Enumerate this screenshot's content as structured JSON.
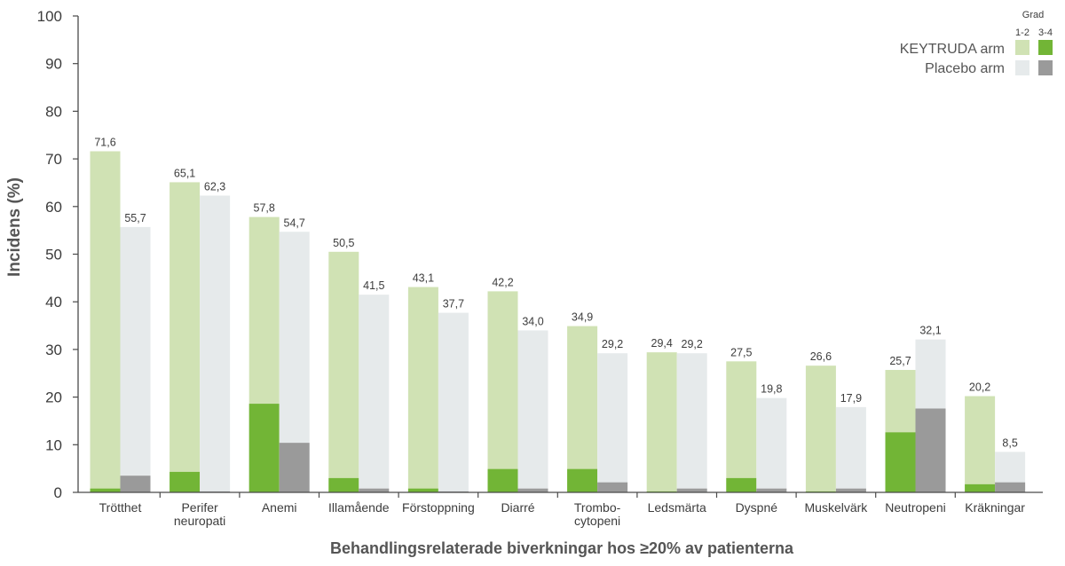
{
  "chart_data": {
    "type": "bar",
    "ylabel": "Incidens (%)",
    "xlabel": "Behandlingsrelaterade biverkningar hos ≥20% av patienterna",
    "ylim": [
      0,
      100
    ],
    "yticks": [
      0,
      10,
      20,
      30,
      40,
      50,
      60,
      70,
      80,
      90,
      100
    ],
    "grid": false,
    "legend_position": "top-right",
    "legend": {
      "title": "Grad",
      "grade_labels": [
        "1-2",
        "3-4"
      ]
    },
    "categories": [
      [
        "Trötthet"
      ],
      [
        "Perifer",
        "neuropati"
      ],
      [
        "Anemi"
      ],
      [
        "Illamående"
      ],
      [
        "Förstoppning"
      ],
      [
        "Diarré"
      ],
      [
        "Trombo-",
        "cytopeni"
      ],
      [
        "Ledsmärta"
      ],
      [
        "Dyspné"
      ],
      [
        "Muskelvärk"
      ],
      [
        "Neutropeni"
      ],
      [
        "Kräkningar"
      ]
    ],
    "series": [
      {
        "name": "KEYTRUDA arm",
        "color_grade12": "#d0e2b4",
        "color_grade34": "#72b536",
        "total": [
          71.6,
          65.1,
          57.8,
          50.5,
          43.1,
          42.2,
          34.9,
          29.4,
          27.5,
          26.6,
          25.7,
          20.2
        ],
        "total_labels": [
          "71,6",
          "65,1",
          "57,8",
          "50,5",
          "43,1",
          "42,2",
          "34,9",
          "29,4",
          "27,5",
          "26,6",
          "25,7",
          "20,2"
        ],
        "grade34": [
          0.8,
          4.3,
          18.6,
          3.0,
          0.8,
          4.9,
          4.9,
          0.2,
          3.0,
          0.2,
          12.6,
          1.7
        ]
      },
      {
        "name": "Placebo arm",
        "color_grade12": "#e6eaeb",
        "color_grade34": "#9a9a9a",
        "total": [
          55.7,
          62.3,
          54.7,
          41.5,
          37.7,
          34.0,
          29.2,
          29.2,
          19.8,
          17.9,
          32.1,
          8.5
        ],
        "total_labels": [
          "55,7",
          "62,3",
          "54,7",
          "41,5",
          "37,7",
          "34,0",
          "29,2",
          "29,2",
          "19,8",
          "17,9",
          "32,1",
          "8,5"
        ],
        "grade34": [
          3.5,
          0.2,
          10.4,
          0.8,
          0.2,
          0.8,
          2.1,
          0.8,
          0.8,
          0.8,
          17.6,
          2.1
        ]
      }
    ]
  }
}
